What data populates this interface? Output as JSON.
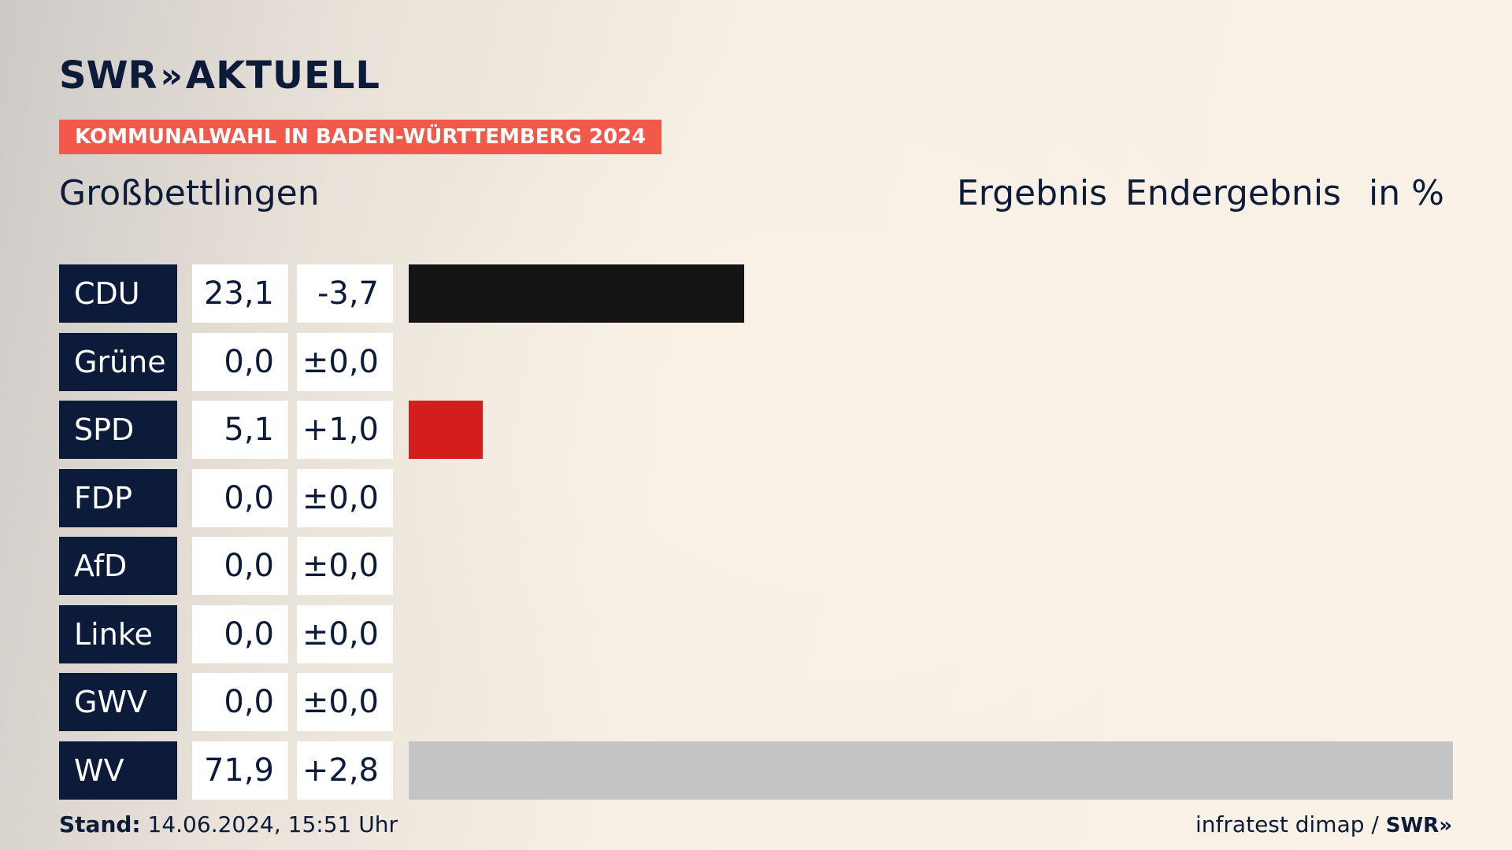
{
  "brand": {
    "logo_left": "SWR",
    "logo_chevrons": "»",
    "logo_right": "AKTUELL"
  },
  "banner": "KOMMUNALWAHL IN BADEN-WÜRTTEMBERG 2024",
  "place": "Großbettlingen",
  "headers": {
    "result": "Ergebnis",
    "status": "Endergebnis",
    "unit": "in %"
  },
  "colors": {
    "navy": "#0c1b3a",
    "banner": "#f2594b",
    "CDU": "#141414",
    "SPD": "#d41e1e",
    "WV": "#c4c4c4"
  },
  "chart_data": {
    "type": "bar",
    "title": "Großbettlingen",
    "unit": "in %",
    "categories": [
      "CDU",
      "Grüne",
      "SPD",
      "FDP",
      "AfD",
      "Linke",
      "GWV",
      "WV"
    ],
    "values": [
      23.1,
      0.0,
      5.1,
      0.0,
      0.0,
      0.0,
      0.0,
      71.9
    ],
    "changes": [
      -3.7,
      0.0,
      1.0,
      0.0,
      0.0,
      0.0,
      0.0,
      2.8
    ],
    "value_labels": [
      "23,1",
      "0,0",
      "5,1",
      "0,0",
      "0,0",
      "0,0",
      "0,0",
      "71,9"
    ],
    "change_labels": [
      "-3,7",
      "±0,0",
      "+1,0",
      "±0,0",
      "±0,0",
      "±0,0",
      "±0,0",
      "+2,8"
    ],
    "bar_colors": [
      "#141414",
      "#000000",
      "#d41e1e",
      "#ffd700",
      "#009ee0",
      "#be3075",
      "#888888",
      "#c4c4c4"
    ],
    "xlim": [
      0,
      71.9
    ]
  },
  "footer": {
    "stand_label": "Stand:",
    "stand_value": "14.06.2024, 15:51 Uhr",
    "source": "infratest dimap /",
    "source_logo": "SWR»"
  }
}
